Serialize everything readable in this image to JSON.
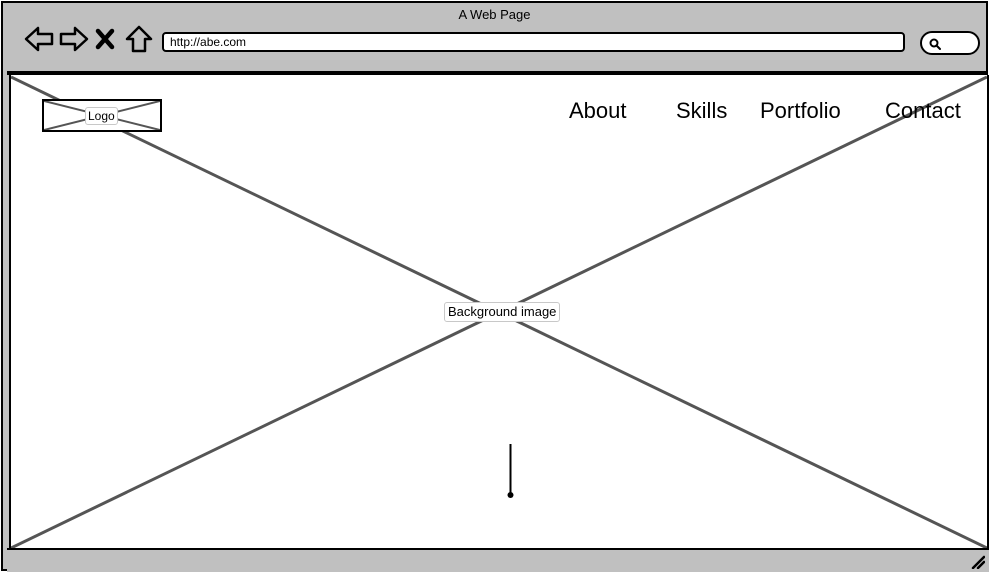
{
  "window": {
    "title": "A Web Page"
  },
  "toolbar": {
    "url": "http://abe.com",
    "icons": {
      "back": "back-arrow-icon",
      "forward": "forward-arrow-icon",
      "stop": "close-icon",
      "home": "home-icon",
      "search": "search-icon"
    }
  },
  "page": {
    "logo_label": "Logo",
    "background_label": "Background image",
    "nav": [
      {
        "label": "About"
      },
      {
        "label": "Skills"
      },
      {
        "label": "Portfolio"
      },
      {
        "label": "Contact"
      }
    ]
  }
}
